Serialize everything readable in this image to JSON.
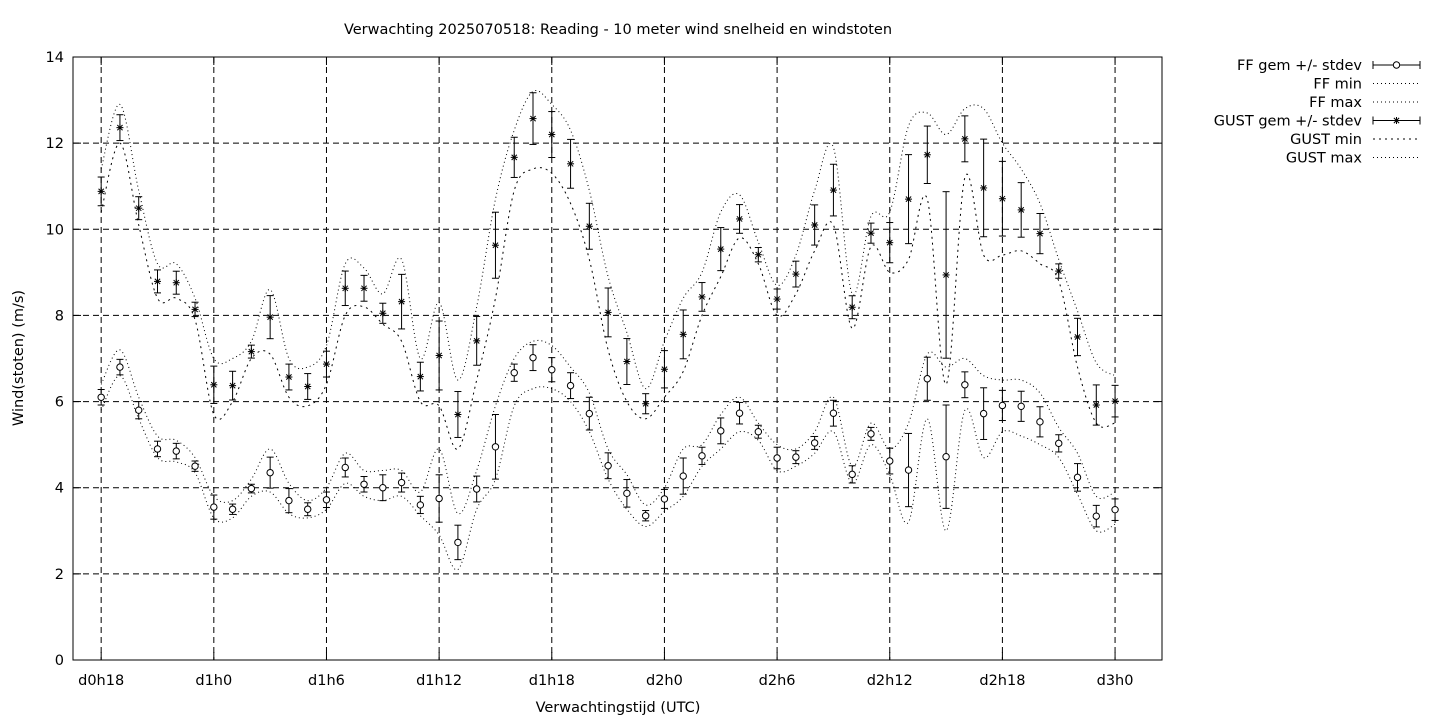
{
  "chart_data": {
    "type": "line",
    "title": "Verwachting 2025070518: Reading - 10 meter wind snelheid en windstoten",
    "xlabel": "Verwachtingstijd (UTC)",
    "ylabel": "Wind(stoten) (m/s)",
    "ylim": [
      0,
      14
    ],
    "yticks": [
      0,
      2,
      4,
      6,
      8,
      10,
      12,
      14
    ],
    "xlim": [
      -1.5,
      56.5
    ],
    "xticks": [
      {
        "value": 0,
        "label": "d0h18"
      },
      {
        "value": 6,
        "label": "d1h0"
      },
      {
        "value": 12,
        "label": "d1h6"
      },
      {
        "value": 18,
        "label": "d1h12"
      },
      {
        "value": 24,
        "label": "d1h18"
      },
      {
        "value": 30,
        "label": "d2h0"
      },
      {
        "value": 36,
        "label": "d2h6"
      },
      {
        "value": 42,
        "label": "d2h12"
      },
      {
        "value": 48,
        "label": "d2h18"
      },
      {
        "value": 54,
        "label": "d3h0"
      }
    ],
    "grid": true,
    "legend_position": "outside-top-right",
    "x": [
      0,
      1,
      2,
      3,
      4,
      5,
      6,
      7,
      8,
      9,
      10,
      11,
      12,
      13,
      14,
      15,
      16,
      17,
      18,
      19,
      20,
      21,
      22,
      23,
      24,
      25,
      26,
      27,
      28,
      29,
      30,
      31,
      32,
      33,
      34,
      35,
      36,
      37,
      38,
      39,
      40,
      41,
      42,
      43,
      44,
      45,
      46,
      47,
      48,
      49,
      50,
      51,
      52,
      53,
      54
    ],
    "series": [
      {
        "name": "FF gem +/- stdev",
        "style": "circle-errorbar",
        "values": [
          6.1,
          6.8,
          5.8,
          4.9,
          4.85,
          4.5,
          3.55,
          3.5,
          3.98,
          4.35,
          3.7,
          3.5,
          3.72,
          4.47,
          4.08,
          4.0,
          4.12,
          3.6,
          3.75,
          2.73,
          3.97,
          4.95,
          6.67,
          7.02,
          6.74,
          6.37,
          5.72,
          4.51,
          3.87,
          3.35,
          3.74,
          4.27,
          4.74,
          5.32,
          5.73,
          5.3,
          4.69,
          4.71,
          5.04,
          5.73,
          4.31,
          5.25,
          4.62,
          4.41,
          6.53,
          4.72,
          6.39,
          5.72,
          5.91,
          5.89,
          5.53,
          5.03,
          4.24,
          3.34,
          3.49
        ],
        "stdev": [
          0.18,
          0.18,
          0.2,
          0.18,
          0.18,
          0.12,
          0.28,
          0.12,
          0.1,
          0.36,
          0.28,
          0.15,
          0.18,
          0.22,
          0.18,
          0.3,
          0.22,
          0.2,
          0.55,
          0.4,
          0.3,
          0.75,
          0.2,
          0.3,
          0.28,
          0.3,
          0.38,
          0.3,
          0.32,
          0.12,
          0.22,
          0.42,
          0.2,
          0.3,
          0.25,
          0.15,
          0.25,
          0.15,
          0.15,
          0.3,
          0.2,
          0.15,
          0.3,
          0.85,
          0.5,
          1.2,
          0.3,
          0.6,
          0.35,
          0.35,
          0.35,
          0.2,
          0.32,
          0.25,
          0.25
        ]
      },
      {
        "name": "FF min",
        "style": "dotted",
        "values": [
          5.8,
          6.6,
          5.6,
          4.7,
          4.6,
          4.35,
          3.3,
          3.3,
          3.8,
          3.9,
          3.4,
          3.3,
          3.5,
          4.1,
          3.8,
          3.7,
          3.8,
          3.35,
          2.9,
          2.1,
          3.5,
          4.2,
          5.9,
          6.3,
          6.3,
          6.0,
          5.3,
          4.2,
          3.5,
          3.1,
          3.45,
          3.8,
          4.5,
          4.9,
          5.3,
          5.1,
          4.4,
          4.5,
          4.8,
          5.3,
          4.1,
          5.0,
          4.3,
          3.2,
          5.6,
          3.0,
          5.8,
          4.7,
          5.3,
          5.2,
          5.0,
          4.7,
          3.85,
          3.0,
          3.15
        ]
      },
      {
        "name": "FF max",
        "style": "dotted",
        "values": [
          6.4,
          7.2,
          6.1,
          5.2,
          5.1,
          4.7,
          3.8,
          3.7,
          4.2,
          4.9,
          4.1,
          3.7,
          4.0,
          4.8,
          4.4,
          4.4,
          4.4,
          3.9,
          4.9,
          3.4,
          4.4,
          5.9,
          7.0,
          7.4,
          7.3,
          6.8,
          6.2,
          4.9,
          4.3,
          3.6,
          4.0,
          4.9,
          5.0,
          5.7,
          6.1,
          5.5,
          5.0,
          4.9,
          5.3,
          6.1,
          4.5,
          5.5,
          4.9,
          5.5,
          7.1,
          6.8,
          7.0,
          6.6,
          6.5,
          6.5,
          6.2,
          5.4,
          4.8,
          3.8,
          3.9
        ]
      },
      {
        "name": "GUST gem +/- stdev",
        "style": "star-errorbar",
        "values": [
          10.88,
          12.36,
          10.49,
          8.79,
          8.76,
          8.14,
          6.39,
          6.37,
          7.16,
          7.96,
          6.57,
          6.35,
          6.87,
          8.63,
          8.63,
          8.05,
          8.32,
          6.58,
          7.07,
          5.7,
          7.41,
          9.63,
          11.67,
          12.57,
          12.2,
          11.52,
          10.07,
          8.07,
          6.93,
          5.95,
          6.75,
          7.56,
          8.43,
          9.54,
          10.24,
          9.41,
          8.38,
          8.96,
          10.1,
          10.91,
          8.19,
          9.91,
          9.69,
          10.7,
          11.73,
          8.94,
          12.1,
          10.96,
          10.71,
          10.45,
          9.9,
          9.03,
          7.5,
          5.92,
          6.01
        ]
      },
      {
        "name": "GUST min",
        "style": "dotted",
        "values": [
          10.4,
          12.0,
          10.1,
          8.4,
          8.4,
          7.9,
          5.7,
          6.0,
          7.0,
          7.1,
          6.1,
          5.9,
          6.4,
          8.0,
          8.2,
          7.8,
          7.4,
          6.0,
          5.9,
          4.9,
          6.5,
          8.4,
          10.9,
          11.4,
          11.3,
          10.6,
          9.3,
          7.2,
          6.0,
          5.6,
          6.1,
          6.7,
          8.0,
          8.9,
          9.8,
          9.2,
          8.0,
          8.5,
          9.5,
          10.1,
          7.7,
          9.6,
          9.0,
          9.3,
          10.7,
          6.4,
          11.2,
          9.4,
          9.4,
          9.5,
          9.2,
          8.8,
          6.8,
          5.5,
          5.5
        ]
      },
      {
        "name": "GUST max",
        "style": "dotted",
        "values": [
          11.4,
          12.9,
          10.9,
          9.2,
          9.2,
          8.4,
          7.0,
          7.0,
          7.4,
          8.6,
          7.0,
          6.8,
          7.3,
          9.2,
          9.1,
          8.5,
          9.3,
          7.0,
          8.3,
          6.5,
          8.2,
          10.7,
          12.3,
          13.2,
          12.9,
          12.3,
          10.9,
          8.9,
          7.6,
          6.3,
          7.4,
          8.4,
          9.0,
          10.4,
          10.8,
          9.7,
          8.7,
          9.4,
          10.9,
          11.9,
          8.5,
          10.3,
          10.4,
          12.4,
          12.7,
          12.2,
          12.8,
          12.8,
          12.0,
          11.4,
          10.6,
          9.3,
          8.1,
          6.9,
          6.6
        ]
      }
    ]
  }
}
